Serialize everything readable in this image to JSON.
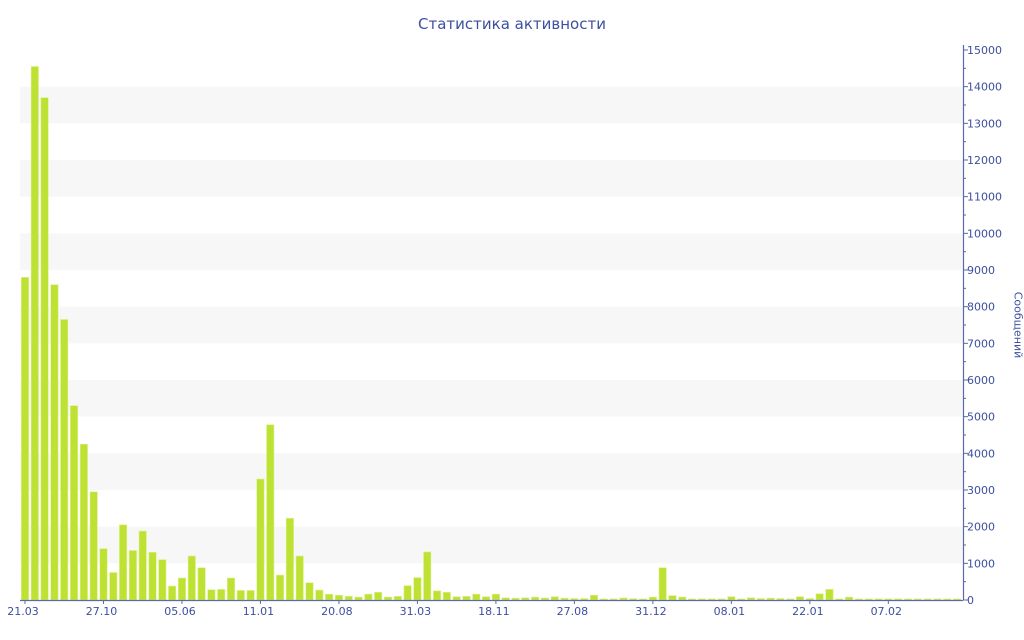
{
  "chart_data": {
    "type": "bar",
    "title": "Статистика активности",
    "ylabel": "Сообщений",
    "xlabel": "",
    "ylim": [
      0,
      15000
    ],
    "y_axis_position": "right",
    "y_ticks": [
      0,
      1000,
      2000,
      3000,
      4000,
      5000,
      6000,
      7000,
      8000,
      9000,
      10000,
      11000,
      12000,
      13000,
      14000,
      15000
    ],
    "grid": "alternating horizontal bands",
    "x_ticks": [
      {
        "index": 0,
        "label": "21.03"
      },
      {
        "index": 8,
        "label": "27.10"
      },
      {
        "index": 16,
        "label": "05.06"
      },
      {
        "index": 24,
        "label": "11.01"
      },
      {
        "index": 32,
        "label": "20.08"
      },
      {
        "index": 40,
        "label": "31.03"
      },
      {
        "index": 48,
        "label": "18.11"
      },
      {
        "index": 56,
        "label": "27.08"
      },
      {
        "index": 64,
        "label": "31.12"
      },
      {
        "index": 72,
        "label": "08.01"
      },
      {
        "index": 80,
        "label": "22.01"
      },
      {
        "index": 88,
        "label": "07.02"
      }
    ],
    "values": [
      8800,
      14550,
      13700,
      8600,
      7650,
      5300,
      4250,
      2950,
      1400,
      750,
      2050,
      1350,
      1880,
      1300,
      1100,
      380,
      600,
      1200,
      880,
      280,
      290,
      600,
      260,
      260,
      3300,
      4780,
      680,
      2230,
      1200,
      470,
      270,
      160,
      130,
      100,
      80,
      160,
      210,
      80,
      100,
      390,
      610,
      1310,
      250,
      210,
      90,
      100,
      160,
      90,
      160,
      60,
      50,
      60,
      80,
      55,
      90,
      50,
      40,
      40,
      130,
      30,
      30,
      55,
      35,
      30,
      80,
      880,
      120,
      80,
      30,
      30,
      30,
      30,
      90,
      30,
      60,
      40,
      50,
      40,
      30,
      90,
      40,
      170,
      290,
      30,
      80,
      30,
      30,
      30,
      30,
      30,
      30,
      30,
      30,
      30,
      30,
      30
    ],
    "colors": {
      "bar": "#bde233",
      "text": "#3d4f9f",
      "band": "#f7f7f7",
      "axis": "#5a6aa8"
    }
  }
}
